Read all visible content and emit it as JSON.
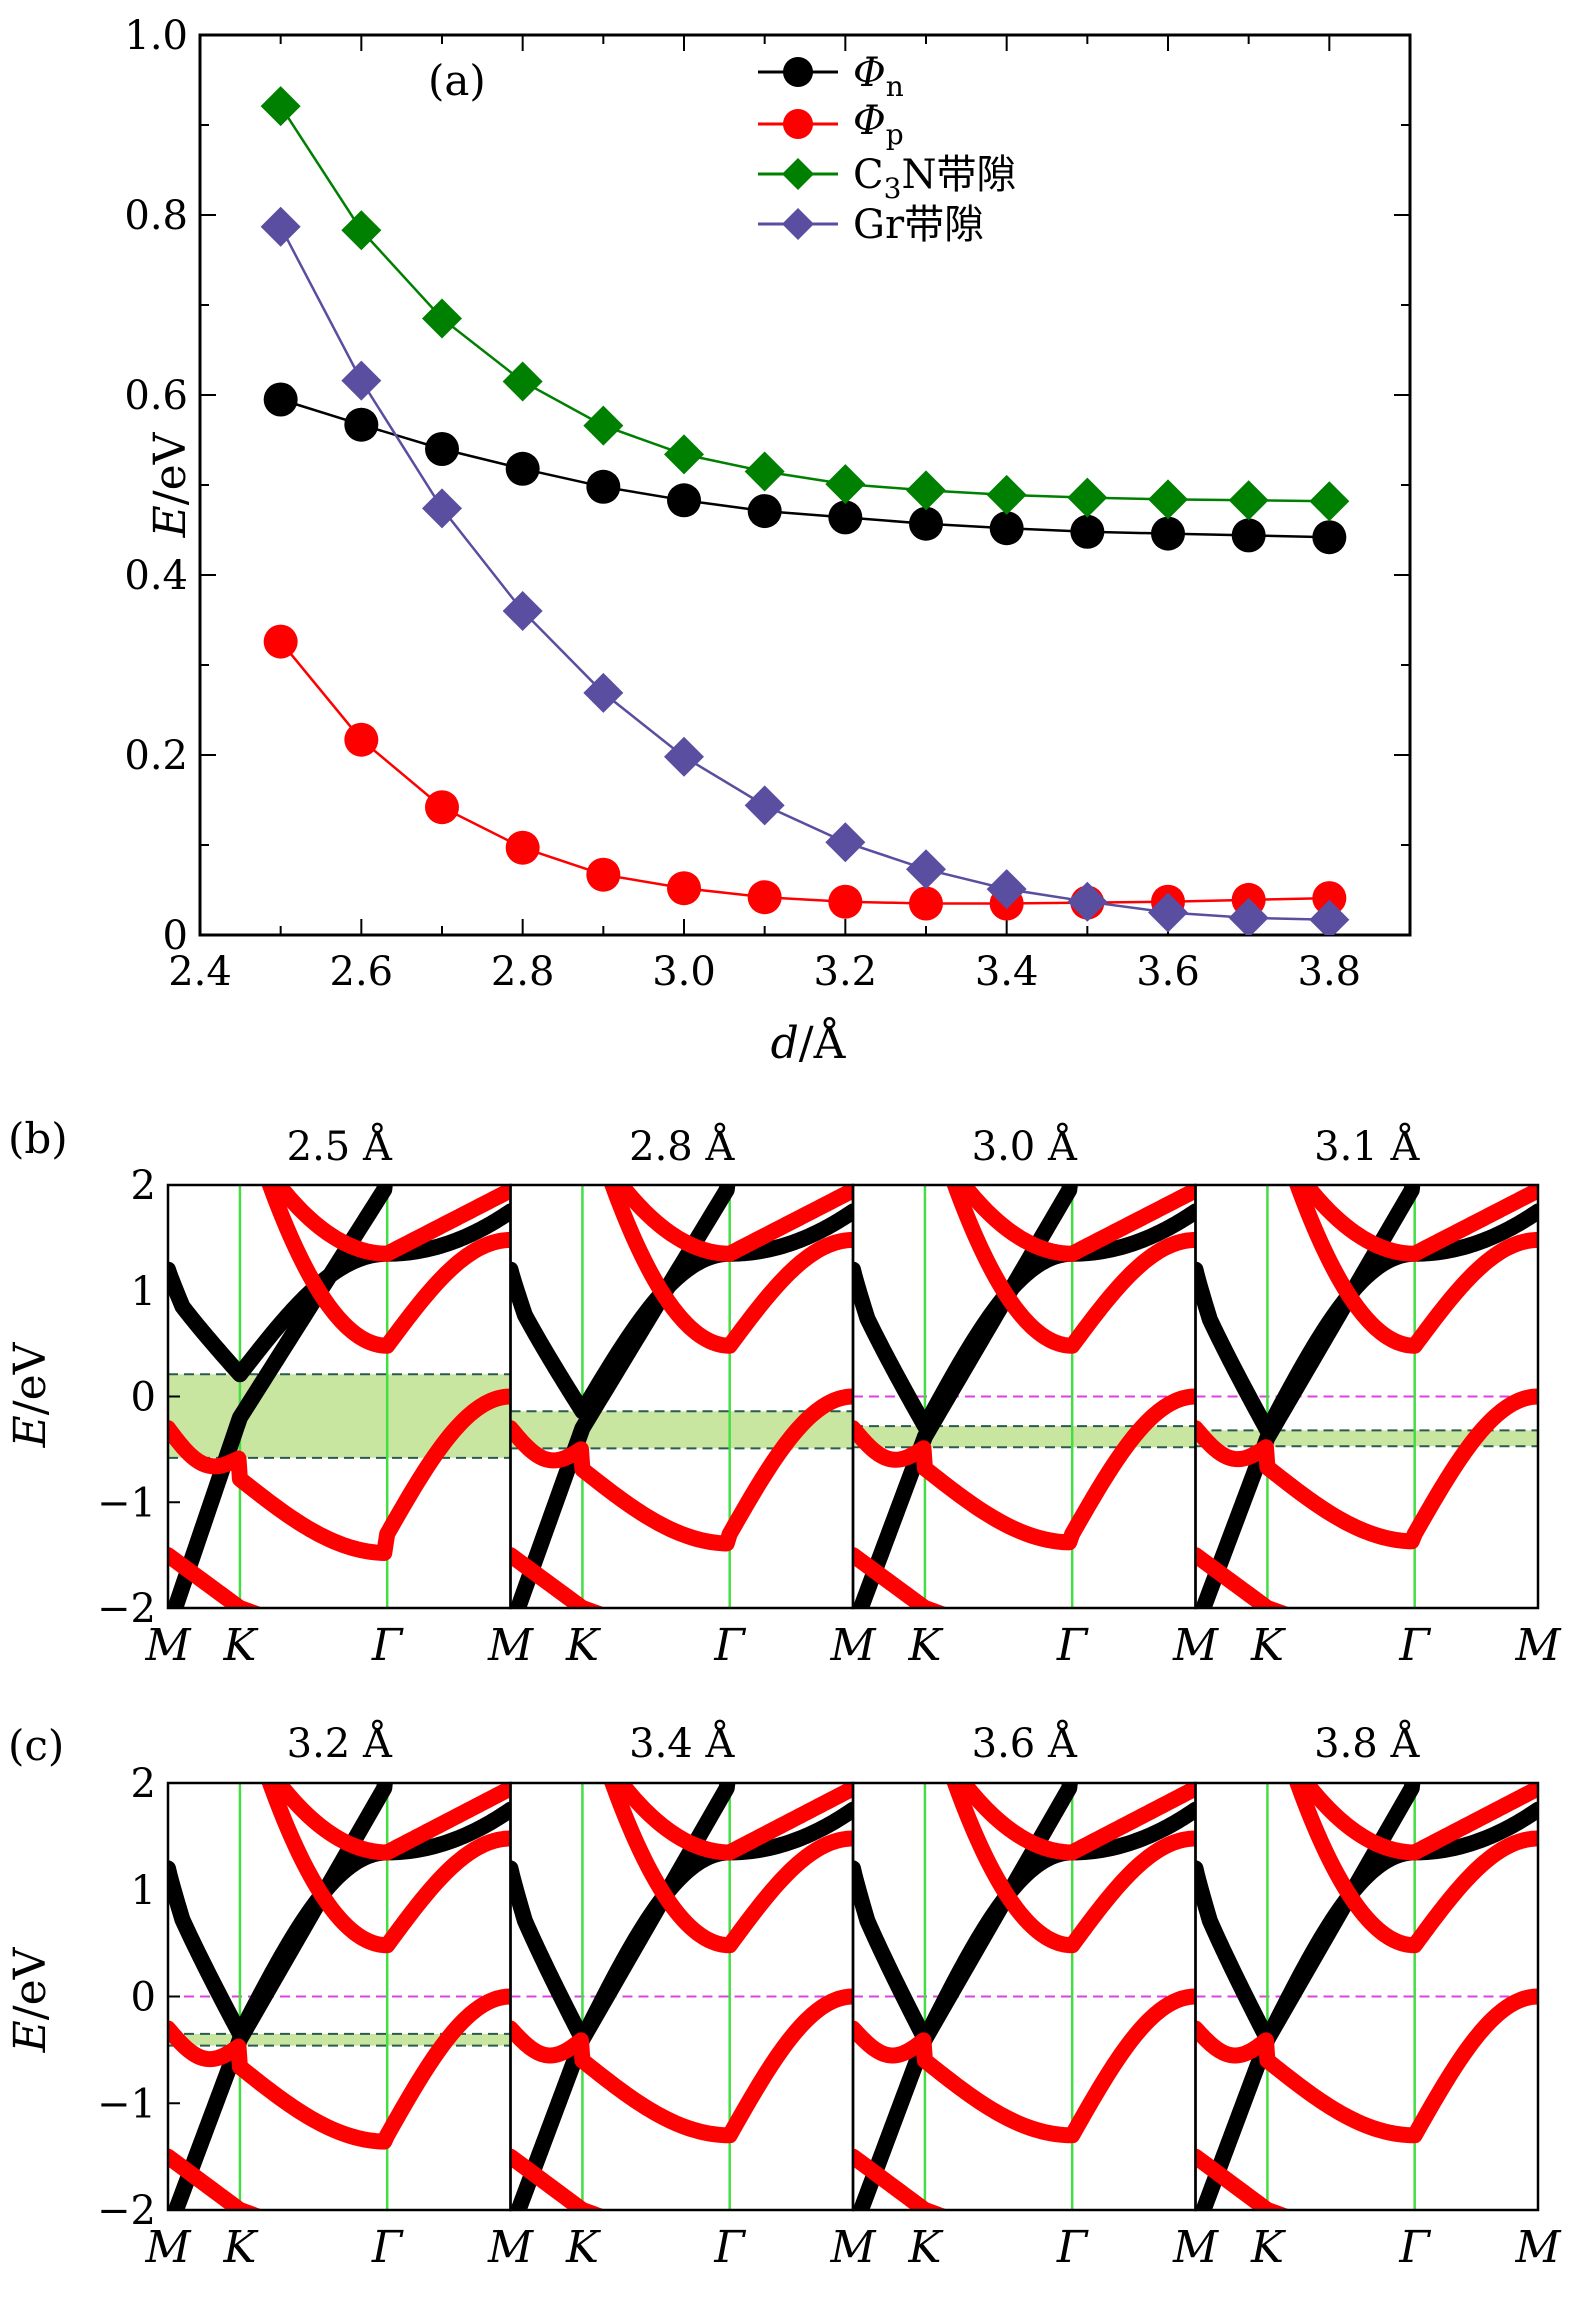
{
  "panel_a": {
    "label": "(a)",
    "ylabel_var": "E",
    "ylabel_unit": "/eV",
    "xlabel_var": "d",
    "xlabel_unit": "/Å",
    "legend": [
      "Φn",
      "Φp",
      "C3N带隙",
      "Gr带隙"
    ],
    "x_tick_labels": [
      "2.4",
      "2.6",
      "2.8",
      "3.0",
      "3.2",
      "3.4",
      "3.6",
      "3.8"
    ],
    "y_tick_labels": [
      "0",
      "0.2",
      "0.4",
      "0.6",
      "0.8",
      "1.0"
    ]
  },
  "panel_b": {
    "label": "(b)",
    "ylabel_var": "E",
    "ylabel_unit": "/eV",
    "titles": [
      "2.5 Å",
      "2.8 Å",
      "3.0 Å",
      "3.1 Å"
    ]
  },
  "panel_c": {
    "label": "(c)",
    "ylabel_var": "E",
    "ylabel_unit": "/eV",
    "titles": [
      "3.2 Å",
      "3.4 Å",
      "3.6 Å",
      "3.8 Å"
    ]
  },
  "band_y_tick_labels": [
    "2",
    "1",
    "0",
    "−1",
    "−2"
  ],
  "kpath_labels": [
    "M",
    "K",
    "Γ",
    "M",
    "K",
    "Γ",
    "M",
    "K",
    "Γ",
    "M",
    "K",
    "Γ",
    "M"
  ],
  "colors": {
    "phi_n": "#000000",
    "phi_p": "#ff0000",
    "c3n_gap": "#008000",
    "gr_gap": "#5a4ea0",
    "gap_fill": "#c8e6a0",
    "k_line": "#44dd44",
    "fermi": "#e040e0"
  },
  "chart_data": [
    {
      "type": "line",
      "x": [
        2.5,
        2.6,
        2.7,
        2.8,
        2.9,
        3.0,
        3.1,
        3.2,
        3.3,
        3.4,
        3.5,
        3.6,
        3.7,
        3.8
      ],
      "xlim": [
        2.4,
        3.9
      ],
      "ylim": [
        0,
        1.0
      ],
      "series": [
        {
          "name": "Φn",
          "marker": "circle",
          "values": [
            0.595,
            0.567,
            0.54,
            0.518,
            0.498,
            0.483,
            0.471,
            0.464,
            0.457,
            0.452,
            0.448,
            0.446,
            0.444,
            0.442
          ]
        },
        {
          "name": "Φp",
          "marker": "circle",
          "values": [
            0.326,
            0.217,
            0.142,
            0.097,
            0.067,
            0.052,
            0.042,
            0.037,
            0.035,
            0.035,
            0.036,
            0.037,
            0.039,
            0.041
          ]
        },
        {
          "name": "C3N带隙",
          "marker": "diamond",
          "values": [
            0.921,
            0.783,
            0.685,
            0.615,
            0.566,
            0.534,
            0.515,
            0.501,
            0.494,
            0.489,
            0.486,
            0.484,
            0.483,
            0.482
          ]
        },
        {
          "name": "Gr带隙",
          "marker": "diamond",
          "values": [
            0.787,
            0.616,
            0.474,
            0.36,
            0.269,
            0.198,
            0.144,
            0.103,
            0.073,
            0.051,
            0.037,
            0.025,
            0.019,
            0.017
          ]
        }
      ]
    },
    {
      "type": "line",
      "note_kind": "band-structure",
      "ylim": [
        -2,
        2
      ],
      "kpath": [
        "M",
        "K",
        "Γ",
        "M"
      ],
      "panels": [
        {
          "d": "2.5 Å",
          "cbm": 0.21,
          "vbm": -0.58,
          "dirac": -0.2,
          "shaded": true
        },
        {
          "d": "2.8 Å",
          "cbm": -0.14,
          "vbm": -0.49,
          "dirac": -0.3,
          "shaded": true
        },
        {
          "d": "3.0 Å",
          "cbm": -0.28,
          "vbm": -0.48,
          "dirac": -0.38,
          "shaded": true
        },
        {
          "d": "3.1 Å",
          "cbm": -0.32,
          "vbm": -0.47,
          "dirac": -0.39,
          "shaded": true
        },
        {
          "d": "3.2 Å",
          "cbm": -0.35,
          "vbm": -0.46,
          "dirac": -0.4,
          "shaded": true
        },
        {
          "d": "3.4 Å",
          "cbm": -0.4,
          "vbm": -0.4,
          "dirac": -0.4,
          "shaded": false
        },
        {
          "d": "3.6 Å",
          "cbm": -0.4,
          "vbm": -0.4,
          "dirac": -0.4,
          "shaded": false
        },
        {
          "d": "3.8 Å",
          "cbm": -0.4,
          "vbm": -0.4,
          "dirac": -0.4,
          "shaded": false
        }
      ]
    }
  ]
}
